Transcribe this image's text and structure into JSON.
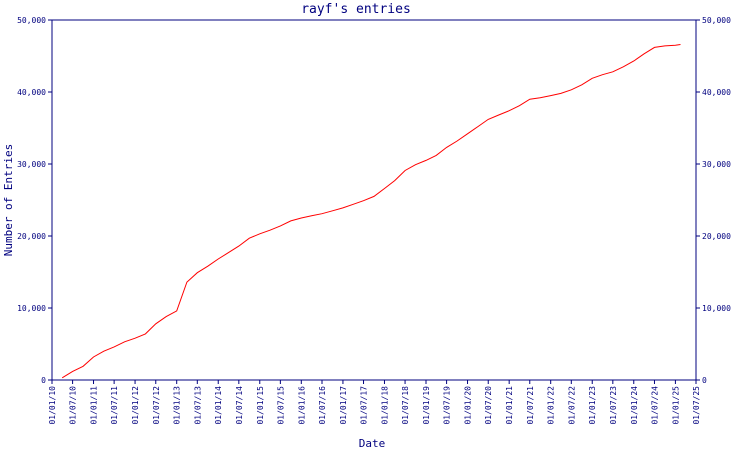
{
  "chart_data": {
    "type": "line",
    "title": "rayf's entries",
    "xlabel": "Date",
    "ylabel": "Number of Entries",
    "ylim": [
      0,
      50000
    ],
    "y_ticks": [
      0,
      10000,
      20000,
      30000,
      40000,
      50000
    ],
    "y_tick_labels": [
      "0",
      "10,000",
      "20,000",
      "30,000",
      "40,000",
      "50,000"
    ],
    "y_axis_right": true,
    "x_ticks": [
      "2010-01-01",
      "2010-07-01",
      "2011-01-01",
      "2011-07-01",
      "2012-01-01",
      "2012-07-01",
      "2013-01-01",
      "2013-07-01",
      "2014-01-01",
      "2014-07-01",
      "2015-01-01",
      "2015-07-01",
      "2016-01-01",
      "2016-07-01",
      "2017-01-01",
      "2017-07-01",
      "2018-01-01",
      "2018-07-01",
      "2019-01-01",
      "2019-07-01",
      "2020-01-01",
      "2020-07-01",
      "2021-01-01",
      "2021-07-01",
      "2022-01-01",
      "2022-07-01",
      "2023-01-01",
      "2023-07-01",
      "2024-01-01",
      "2024-07-01",
      "2025-01-01",
      "2025-07-01"
    ],
    "x_tick_labels": [
      "01/01/10",
      "01/07/10",
      "01/01/11",
      "01/07/11",
      "01/01/12",
      "01/07/12",
      "01/01/13",
      "01/07/13",
      "01/01/14",
      "01/07/14",
      "01/01/15",
      "01/07/15",
      "01/01/16",
      "01/07/16",
      "01/01/17",
      "01/07/17",
      "01/01/18",
      "01/07/18",
      "01/01/19",
      "01/07/19",
      "01/01/20",
      "01/07/20",
      "01/01/21",
      "01/07/21",
      "01/01/22",
      "01/07/22",
      "01/01/23",
      "01/07/23",
      "01/01/24",
      "01/07/24",
      "01/01/25",
      "01/07/25"
    ],
    "xlim": [
      "2010-01-01",
      "2025-07-01"
    ],
    "grid": false,
    "series": [
      {
        "color": "#ff0000",
        "x": [
          "2010-04-01",
          "2010-07-01",
          "2010-10-01",
          "2011-01-01",
          "2011-04-01",
          "2011-07-01",
          "2011-10-01",
          "2012-01-01",
          "2012-04-01",
          "2012-07-01",
          "2012-10-01",
          "2013-01-01",
          "2013-04-01",
          "2013-07-01",
          "2013-10-01",
          "2014-01-01",
          "2014-04-01",
          "2014-07-01",
          "2014-10-01",
          "2015-01-01",
          "2015-04-01",
          "2015-07-01",
          "2015-10-01",
          "2016-01-01",
          "2016-04-01",
          "2016-07-01",
          "2016-10-01",
          "2017-01-01",
          "2017-04-01",
          "2017-07-01",
          "2017-10-01",
          "2018-01-01",
          "2018-04-01",
          "2018-07-01",
          "2018-10-01",
          "2019-01-01",
          "2019-04-01",
          "2019-07-01",
          "2019-10-01",
          "2020-01-01",
          "2020-04-01",
          "2020-07-01",
          "2020-10-01",
          "2021-01-01",
          "2021-04-01",
          "2021-07-01",
          "2021-10-01",
          "2022-01-01",
          "2022-04-01",
          "2022-07-01",
          "2022-10-01",
          "2023-01-01",
          "2023-04-01",
          "2023-07-01",
          "2023-10-01",
          "2024-01-01",
          "2024-04-01",
          "2024-07-01",
          "2024-10-01",
          "2025-01-01",
          "2025-02-15"
        ],
        "y": [
          300,
          1200,
          1900,
          3200,
          4000,
          4600,
          5300,
          5800,
          6400,
          7800,
          8800,
          9600,
          13600,
          14900,
          15800,
          16800,
          17700,
          18600,
          19700,
          20300,
          20800,
          21400,
          22100,
          22500,
          22800,
          23100,
          23500,
          23900,
          24400,
          24900,
          25500,
          26600,
          27700,
          29100,
          29900,
          30500,
          31200,
          32300,
          33200,
          34200,
          35200,
          36200,
          36800,
          37400,
          38100,
          39000,
          39200,
          39500,
          39800,
          40300,
          41000,
          41900,
          42400,
          42800,
          43500,
          44300,
          45300,
          46200,
          46400,
          46500,
          46600
        ]
      }
    ]
  }
}
